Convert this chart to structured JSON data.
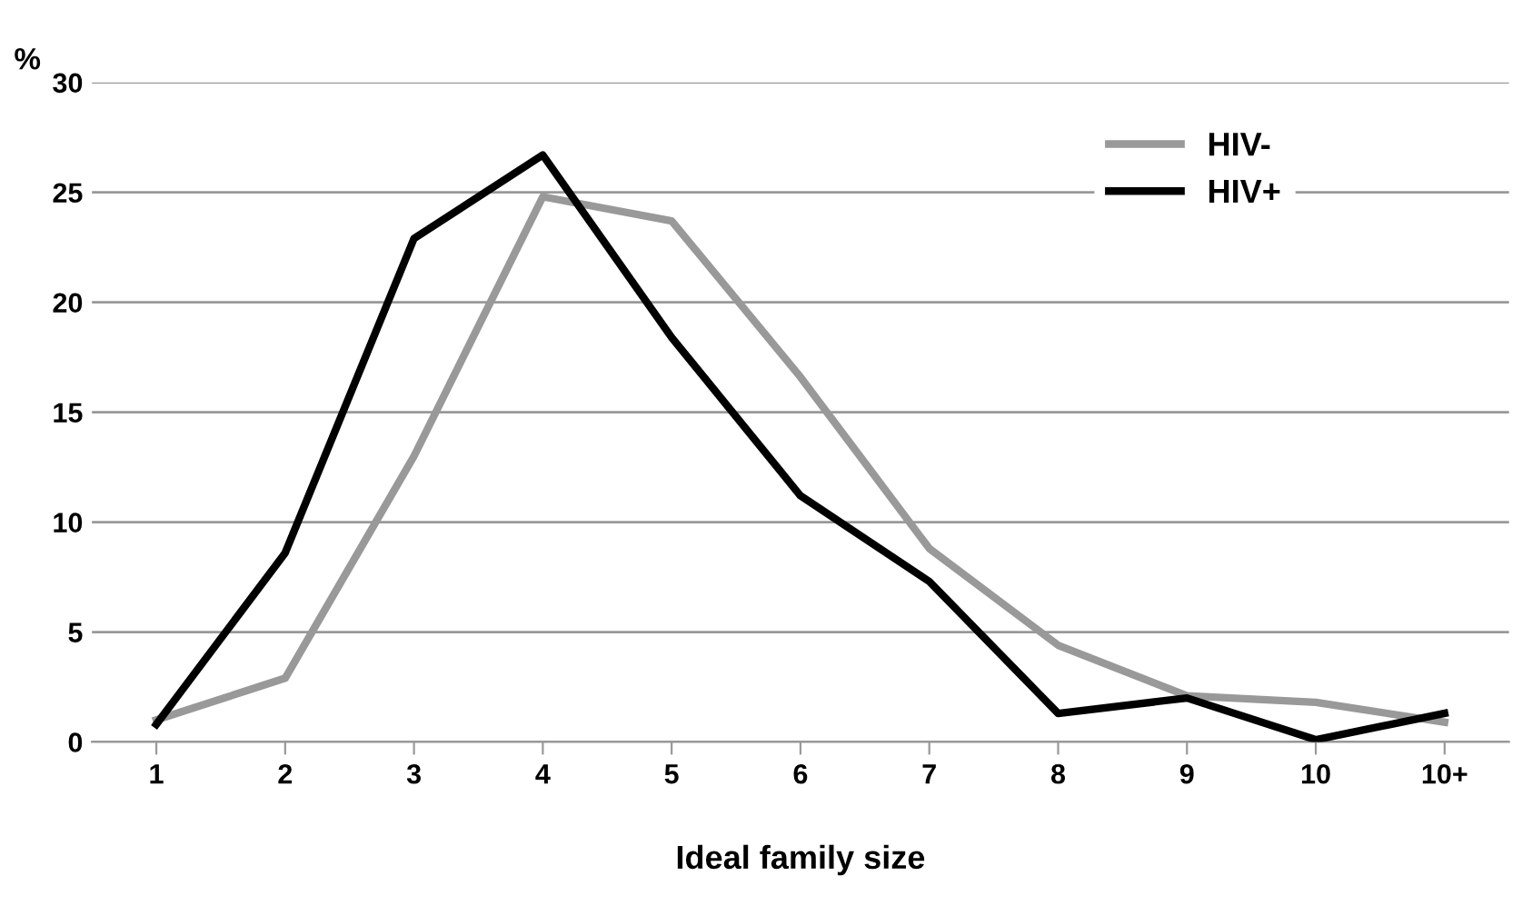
{
  "chart_data": {
    "type": "line",
    "ylabel": "%",
    "xlabel": "Ideal family size",
    "categories": [
      "1",
      "2",
      "3",
      "4",
      "5",
      "6",
      "7",
      "8",
      "9",
      "10",
      "10+"
    ],
    "series": [
      {
        "name": "HIV-",
        "color": "#999999",
        "values": [
          1.0,
          2.9,
          13.0,
          24.8,
          23.7,
          16.6,
          8.8,
          4.4,
          2.1,
          1.8,
          0.9
        ]
      },
      {
        "name": "HIV+",
        "color": "#000000",
        "values": [
          0.8,
          8.6,
          22.9,
          26.7,
          18.4,
          11.2,
          7.3,
          1.3,
          2.0,
          0.1,
          1.3
        ]
      }
    ],
    "ylim": [
      0,
      30
    ],
    "yticks": [
      0,
      5,
      10,
      15,
      20,
      25,
      30
    ],
    "grid": "y",
    "legend": "top right",
    "marker": "none",
    "line_style": "solid"
  }
}
